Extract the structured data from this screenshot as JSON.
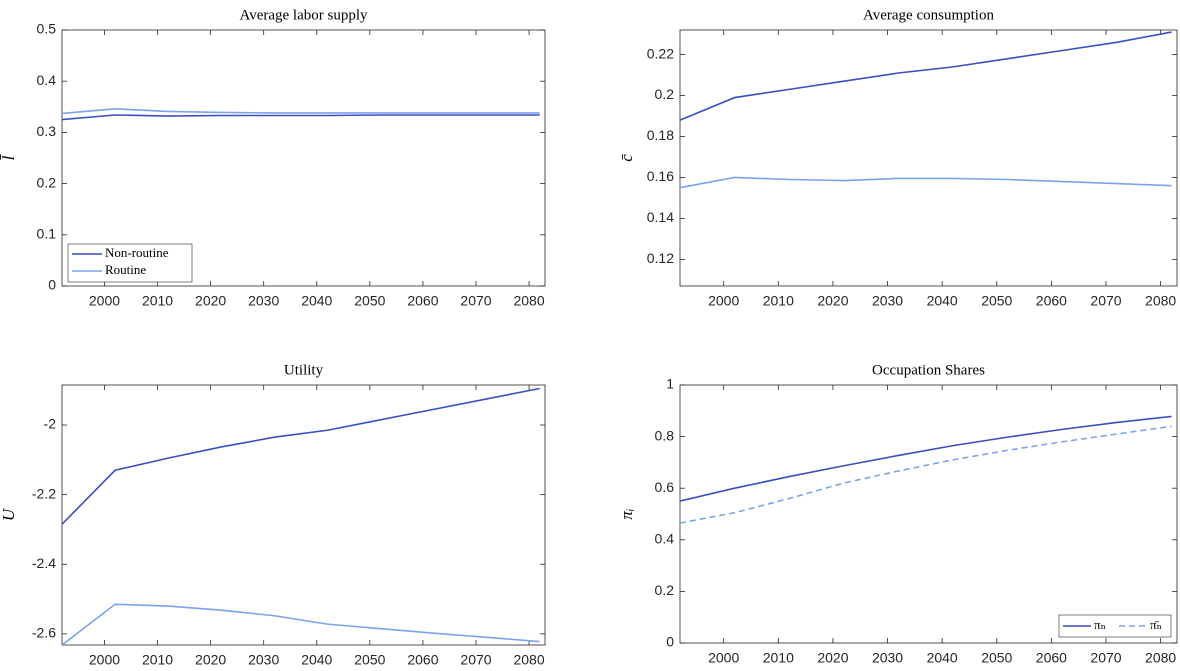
{
  "chart_data": [
    {
      "type": "line",
      "title": "Average labor supply",
      "y_label": "l̄",
      "x": [
        1992,
        2002,
        2012,
        2022,
        2032,
        2042,
        2052,
        2062,
        2072,
        2082
      ],
      "xlim": [
        1992,
        2083
      ],
      "xticks": [
        2000,
        2010,
        2020,
        2030,
        2040,
        2050,
        2060,
        2070,
        2080
      ],
      "ylim": [
        0,
        0.5
      ],
      "yticks": [
        0,
        0.1,
        0.2,
        0.3,
        0.4,
        0.5
      ],
      "legend": "lower left",
      "series": [
        {
          "name": "Non-routine",
          "color": "#3a4fbf",
          "linestyle": "solid",
          "values": [
            0.325,
            0.334,
            0.332,
            0.333,
            0.333,
            0.333,
            0.334,
            0.334,
            0.334,
            0.334
          ]
        },
        {
          "name": "Routine",
          "color": "#7ba3ee",
          "linestyle": "solid",
          "values": [
            0.337,
            0.346,
            0.341,
            0.339,
            0.338,
            0.338,
            0.338,
            0.338,
            0.338,
            0.338
          ]
        }
      ]
    },
    {
      "type": "line",
      "title": "Average consumption",
      "y_label": "c̄",
      "x": [
        1992,
        2002,
        2012,
        2022,
        2032,
        2042,
        2052,
        2062,
        2072,
        2082
      ],
      "xlim": [
        1992,
        2083
      ],
      "xticks": [
        2000,
        2010,
        2020,
        2030,
        2040,
        2050,
        2060,
        2070,
        2080
      ],
      "ylim": [
        0.107,
        0.232
      ],
      "yticks": [
        0.12,
        0.14,
        0.16,
        0.18,
        0.2,
        0.22
      ],
      "series": [
        {
          "color": "#3a4fbf",
          "linestyle": "solid",
          "values": [
            0.188,
            0.199,
            0.203,
            0.207,
            0.211,
            0.214,
            0.218,
            0.222,
            0.226,
            0.231
          ]
        },
        {
          "color": "#7ba3ee",
          "linestyle": "solid",
          "values": [
            0.155,
            0.16,
            0.159,
            0.1585,
            0.1595,
            0.1595,
            0.159,
            0.158,
            0.157,
            0.156
          ]
        }
      ]
    },
    {
      "type": "line",
      "title": "Utility",
      "y_label": "U",
      "x": [
        1992,
        2002,
        2012,
        2022,
        2032,
        2042,
        2052,
        2062,
        2072,
        2082
      ],
      "xlim": [
        1992,
        2083
      ],
      "xticks": [
        2000,
        2010,
        2020,
        2030,
        2040,
        2050,
        2060,
        2070,
        2080
      ],
      "ylim": [
        -2.632,
        -1.885
      ],
      "yticks": [
        -2.6,
        -2.4,
        -2.2,
        -2
      ],
      "series": [
        {
          "color": "#3a4fbf",
          "linestyle": "solid",
          "values": [
            -2.285,
            -2.13,
            -2.095,
            -2.063,
            -2.035,
            -2.015,
            -1.985,
            -1.955,
            -1.925,
            -1.895
          ]
        },
        {
          "color": "#7ba3ee",
          "linestyle": "solid",
          "values": [
            -2.632,
            -2.515,
            -2.52,
            -2.532,
            -2.548,
            -2.572,
            -2.585,
            -2.598,
            -2.61,
            -2.622
          ]
        }
      ]
    },
    {
      "type": "line",
      "title": "Occupation Shares",
      "y_label": "πᵢ",
      "x": [
        1992,
        2002,
        2012,
        2022,
        2032,
        2042,
        2052,
        2062,
        2072,
        2082
      ],
      "xlim": [
        1992,
        2083
      ],
      "xticks": [
        2000,
        2010,
        2020,
        2030,
        2040,
        2050,
        2060,
        2070,
        2080
      ],
      "ylim": [
        0,
        1
      ],
      "yticks": [
        0,
        0.2,
        0.4,
        0.6,
        0.8,
        1
      ],
      "legend": "lower right",
      "series": [
        {
          "name": "πₙ",
          "color": "#3a4fbf",
          "linestyle": "solid",
          "values": [
            0.55,
            0.6,
            0.645,
            0.687,
            0.727,
            0.765,
            0.798,
            0.828,
            0.855,
            0.878
          ]
        },
        {
          "name": "π̄ₙ",
          "color": "#7ba3ee",
          "linestyle": "dashed",
          "values": [
            0.465,
            0.505,
            0.56,
            0.62,
            0.667,
            0.71,
            0.747,
            0.78,
            0.81,
            0.84
          ]
        }
      ]
    }
  ]
}
